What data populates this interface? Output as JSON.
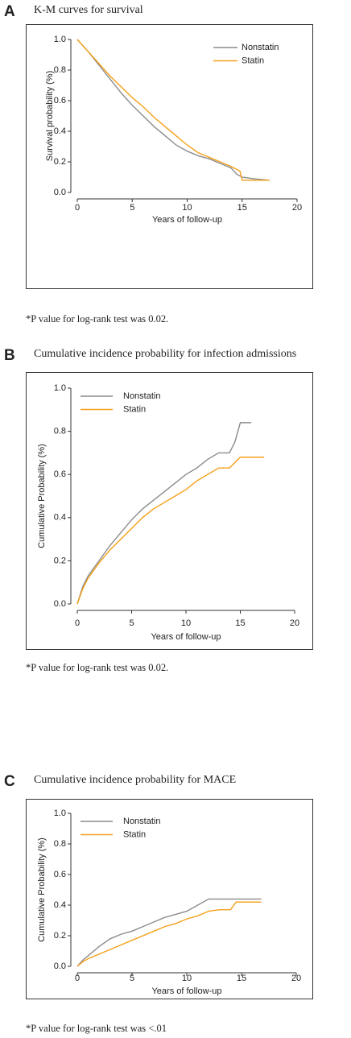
{
  "chart_data": [
    {
      "type": "line",
      "panel": "A",
      "title": "K-M curves for survival",
      "x_label": "Years of follow-up",
      "y_label": "Survival probability (%)",
      "note": "*P value for log-rank test was 0.02.",
      "xlim": [
        0,
        20
      ],
      "ylim": [
        0,
        1
      ],
      "xticks": [
        0,
        5,
        10,
        15,
        20
      ],
      "yticks": [
        {
          "value": 0,
          "label": "0.0"
        },
        0.2,
        0.4,
        0.6,
        0.8,
        {
          "value": 1,
          "label": "1.0"
        }
      ],
      "legend": "top-right",
      "series": [
        {
          "name": "Nonstatin",
          "color": "#8c8c8c",
          "x": [
            0,
            1,
            2,
            3,
            4,
            5,
            6,
            7,
            8,
            9,
            10,
            11,
            12,
            13,
            14,
            14.5,
            15,
            16,
            17.5
          ],
          "values": [
            1.0,
            0.92,
            0.83,
            0.74,
            0.65,
            0.57,
            0.5,
            0.43,
            0.37,
            0.31,
            0.27,
            0.24,
            0.22,
            0.19,
            0.16,
            0.12,
            0.1,
            0.09,
            0.08
          ]
        },
        {
          "name": "Statin",
          "color": "#f5a01a",
          "x": [
            0,
            1,
            2,
            3,
            4,
            5,
            6,
            7,
            8,
            9,
            10,
            11,
            12,
            13,
            14,
            14.8,
            15,
            16,
            17.5
          ],
          "values": [
            1.0,
            0.92,
            0.84,
            0.76,
            0.69,
            0.62,
            0.56,
            0.49,
            0.43,
            0.37,
            0.31,
            0.26,
            0.23,
            0.2,
            0.17,
            0.14,
            0.08,
            0.08,
            0.08
          ]
        }
      ]
    },
    {
      "type": "line",
      "panel": "B",
      "title": "Cumulative incidence probability for infection admissions",
      "x_label": "Years of follow-up",
      "y_label": "Cumulative Probability (%)",
      "note": "*P value for log-rank test was 0.02.",
      "xlim": [
        0,
        20
      ],
      "ylim": [
        0,
        1
      ],
      "xticks": [
        0,
        5,
        10,
        15,
        20
      ],
      "yticks": [
        {
          "value": 0,
          "label": "0.0"
        },
        0.2,
        0.4,
        0.6,
        0.8,
        {
          "value": 1,
          "label": "1.0"
        }
      ],
      "legend": "top-left",
      "series": [
        {
          "name": "Nonstatin",
          "color": "#8c8c8c",
          "x": [
            0,
            0.5,
            1,
            2,
            3,
            4,
            5,
            6,
            7,
            8,
            9,
            10,
            11,
            12,
            13,
            14,
            14.5,
            15,
            16
          ],
          "values": [
            0,
            0.08,
            0.13,
            0.2,
            0.27,
            0.33,
            0.39,
            0.44,
            0.48,
            0.52,
            0.56,
            0.6,
            0.63,
            0.67,
            0.7,
            0.7,
            0.75,
            0.84,
            0.84
          ]
        },
        {
          "name": "Statin",
          "color": "#f5a01a",
          "x": [
            0,
            0.5,
            1,
            2,
            3,
            4,
            5,
            6,
            7,
            8,
            9,
            10,
            11,
            12,
            13,
            14,
            15,
            16,
            17.2
          ],
          "values": [
            0,
            0.07,
            0.12,
            0.19,
            0.25,
            0.3,
            0.35,
            0.4,
            0.44,
            0.47,
            0.5,
            0.53,
            0.57,
            0.6,
            0.63,
            0.63,
            0.68,
            0.68,
            0.68
          ]
        }
      ]
    },
    {
      "type": "line",
      "panel": "C",
      "title": "Cumulative incidence probability for MACE",
      "x_label": "Years of follow-up",
      "y_label": "Cumulative Probability (%)",
      "note": "*P value for log-rank test was <.01",
      "xlim": [
        0,
        20
      ],
      "ylim": [
        0,
        1
      ],
      "xticks": [
        0,
        5,
        10,
        15,
        20
      ],
      "yticks": [
        {
          "value": 0,
          "label": "0.0"
        },
        0.2,
        0.4,
        0.6,
        0.8,
        {
          "value": 1,
          "label": "1.0"
        }
      ],
      "legend": "top-left",
      "series": [
        {
          "name": "Nonstatin",
          "color": "#8c8c8c",
          "x": [
            0,
            0.5,
            1,
            2,
            3,
            4,
            5,
            6,
            7,
            8,
            9,
            10,
            11,
            12,
            13,
            14,
            15,
            16,
            16.8
          ],
          "values": [
            0,
            0.04,
            0.07,
            0.13,
            0.18,
            0.21,
            0.23,
            0.26,
            0.29,
            0.32,
            0.34,
            0.36,
            0.4,
            0.44,
            0.44,
            0.44,
            0.44,
            0.44,
            0.44
          ]
        },
        {
          "name": "Statin",
          "color": "#f5a01a",
          "x": [
            0,
            0.5,
            1,
            2,
            3,
            4,
            5,
            6,
            7,
            8,
            9,
            10,
            11,
            12,
            13,
            14,
            14.5,
            15,
            16.8
          ],
          "values": [
            0,
            0.03,
            0.05,
            0.08,
            0.11,
            0.14,
            0.17,
            0.2,
            0.23,
            0.26,
            0.28,
            0.31,
            0.33,
            0.36,
            0.37,
            0.37,
            0.42,
            0.42,
            0.42
          ]
        }
      ]
    }
  ]
}
